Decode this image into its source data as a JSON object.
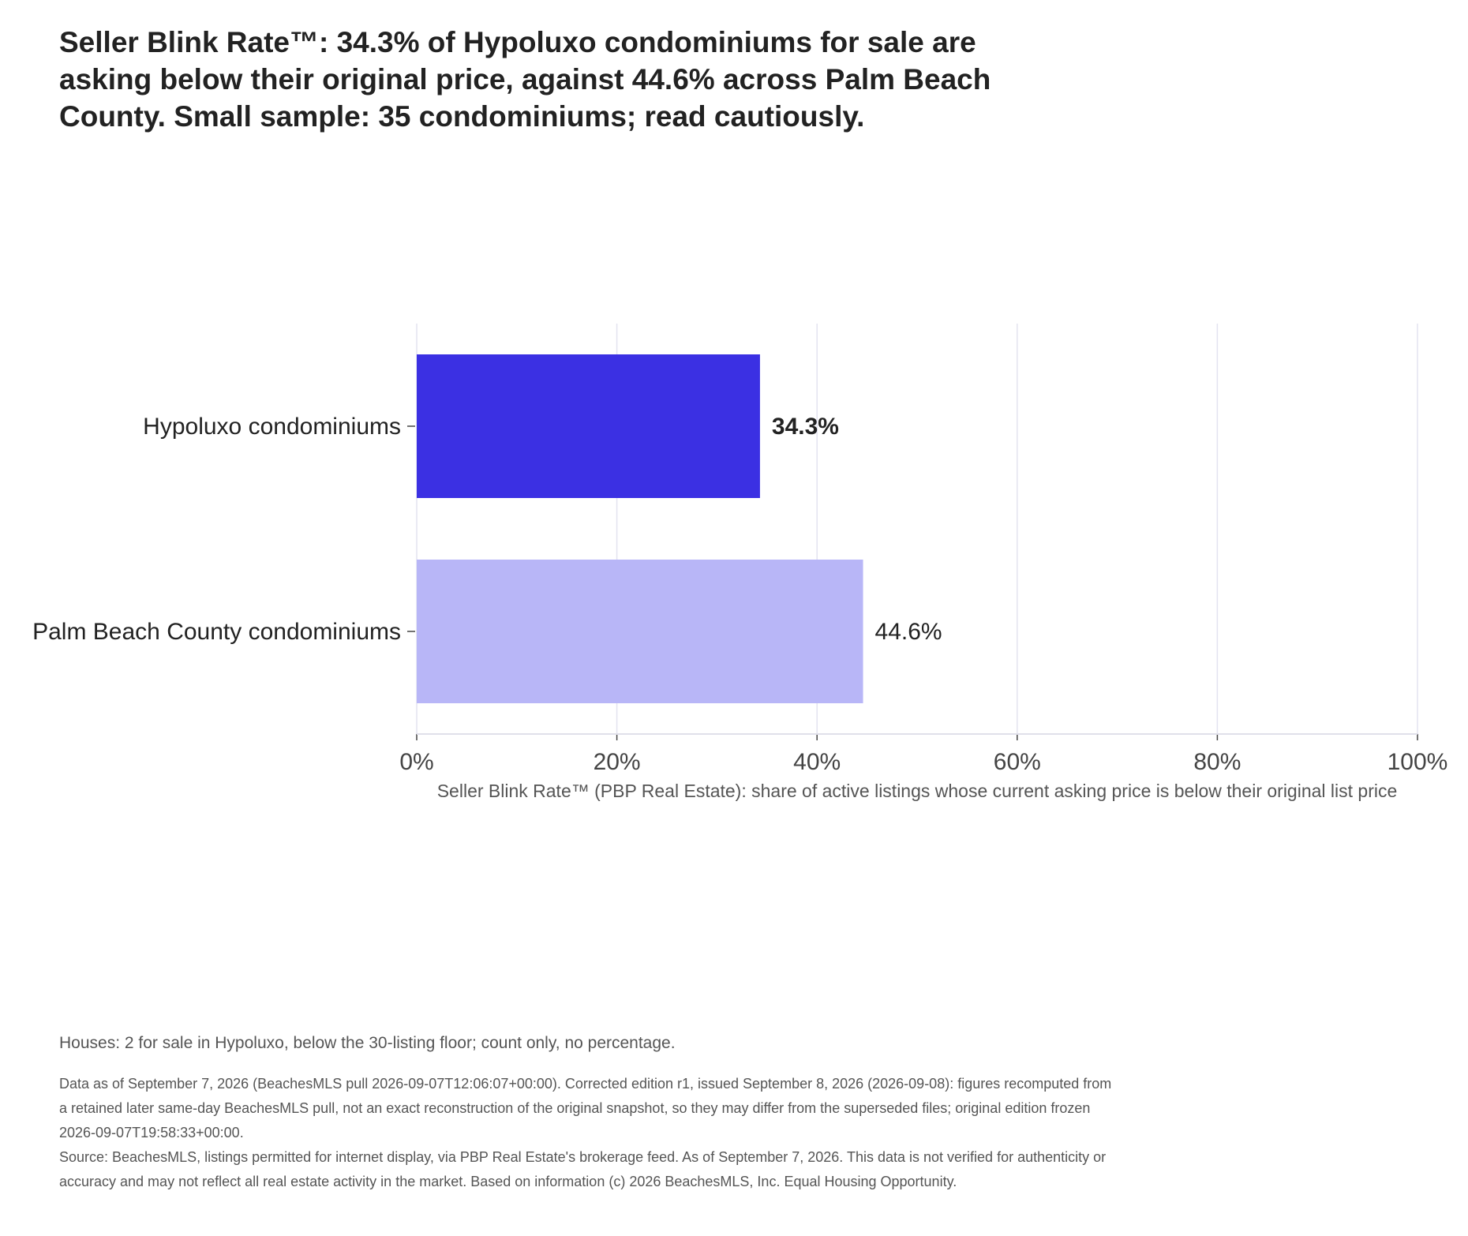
{
  "title": "Seller Blink Rate™: 34.3% of Hypoluxo condominiums for sale are asking below their original price, against 44.6% across Palm Beach County. Small sample: 35 condominiums; read cautiously.",
  "houses_note": "Houses: 2 for sale in Hypoluxo, below the 30-listing floor; count only, no percentage.",
  "footnote": {
    "edition": "Data as of September 7, 2026 (BeachesMLS pull 2026-09-07T12:06:07+00:00). Corrected edition r1, issued September 8, 2026 (2026-09-08): figures recomputed from a retained later same-day BeachesMLS pull, not an exact reconstruction of the original snapshot, so they may differ from the superseded files; original edition frozen 2026-09-07T19:58:33+00:00.",
    "source": "Source: BeachesMLS, listings permitted for internet display, via PBP Real Estate's brokerage feed. As of September 7, 2026. This data is not verified for authenticity or accuracy and may not reflect all real estate activity in the market. Based on information (c) 2026 BeachesMLS, Inc. Equal Housing Opportunity."
  },
  "chart_data": {
    "type": "bar",
    "orientation": "horizontal",
    "categories": [
      "Hypoluxo condominiums",
      "Palm Beach County condominiums"
    ],
    "values": [
      34.3,
      44.6
    ],
    "value_labels": [
      "34.3%",
      "44.6%"
    ],
    "value_label_bold": [
      true,
      false
    ],
    "colors": [
      "#3b30e3",
      "#b8b6f7"
    ],
    "xlim": [
      0,
      100
    ],
    "xticks": [
      0,
      20,
      40,
      60,
      80,
      100
    ],
    "xtick_labels": [
      "0%",
      "20%",
      "40%",
      "60%",
      "80%",
      "100%"
    ],
    "xlabel": "Seller Blink Rate™ (PBP Real Estate): share of active listings whose current asking price is below their original list price",
    "grid": true,
    "gridline_color": "#e3e3f0",
    "axis_color": "#e0e0ea"
  }
}
